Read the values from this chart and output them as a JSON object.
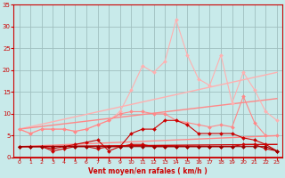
{
  "bg_color": "#c8eaea",
  "grid_color": "#a0c0c0",
  "xlabel": "Vent moyen/en rafales ( km/h )",
  "xlim": [
    -0.5,
    23.5
  ],
  "ylim": [
    0,
    35
  ],
  "yticks": [
    0,
    5,
    10,
    15,
    20,
    25,
    30,
    35
  ],
  "xticks": [
    0,
    1,
    2,
    3,
    4,
    5,
    6,
    7,
    8,
    9,
    10,
    11,
    12,
    13,
    14,
    15,
    16,
    17,
    18,
    19,
    20,
    21,
    22,
    23
  ],
  "label_color": "#cc0000",
  "series": [
    {
      "x": [
        0,
        23
      ],
      "y": [
        6.5,
        19.5
      ],
      "color": "#ffb0b0",
      "marker": null,
      "linewidth": 1.0
    },
    {
      "x": [
        0,
        23
      ],
      "y": [
        6.5,
        13.5
      ],
      "color": "#ff8888",
      "marker": null,
      "linewidth": 1.0
    },
    {
      "x": [
        0,
        23
      ],
      "y": [
        2.5,
        5.0
      ],
      "color": "#ff8888",
      "marker": null,
      "linewidth": 1.0
    },
    {
      "x": [
        0,
        23
      ],
      "y": [
        2.5,
        3.0
      ],
      "color": "#cc0000",
      "marker": null,
      "linewidth": 1.0
    },
    {
      "x": [
        0,
        1,
        2,
        3,
        4,
        5,
        6,
        7,
        8,
        9,
        10,
        11,
        12,
        13,
        14,
        15,
        16,
        17,
        18,
        19,
        20,
        21,
        22,
        23
      ],
      "y": [
        6.5,
        5.5,
        6.5,
        6.5,
        6.5,
        6.0,
        6.5,
        7.5,
        8.5,
        10.5,
        15.5,
        21.0,
        19.5,
        22.0,
        31.5,
        23.5,
        18.0,
        16.5,
        23.5,
        12.5,
        19.5,
        15.5,
        10.5,
        8.5
      ],
      "color": "#ffb0b0",
      "marker": "D",
      "markersize": 2,
      "linewidth": 0.8
    },
    {
      "x": [
        0,
        1,
        2,
        3,
        4,
        5,
        6,
        7,
        8,
        9,
        10,
        11,
        12,
        13,
        14,
        15,
        16,
        17,
        18,
        19,
        20,
        21,
        22,
        23
      ],
      "y": [
        6.5,
        5.5,
        6.5,
        6.5,
        6.5,
        6.0,
        6.5,
        7.5,
        8.5,
        10.0,
        10.5,
        10.5,
        10.0,
        10.0,
        8.5,
        8.0,
        7.5,
        7.0,
        7.5,
        7.0,
        14.0,
        8.0,
        5.0,
        5.0
      ],
      "color": "#ff8888",
      "marker": "D",
      "markersize": 2,
      "linewidth": 0.8
    },
    {
      "x": [
        0,
        1,
        2,
        3,
        4,
        5,
        6,
        7,
        8,
        9,
        10,
        11,
        12,
        13,
        14,
        15,
        16,
        17,
        18,
        19,
        20,
        21,
        22,
        23
      ],
      "y": [
        2.5,
        2.5,
        2.5,
        2.0,
        2.5,
        3.0,
        3.5,
        4.0,
        1.5,
        2.5,
        5.5,
        6.5,
        6.5,
        8.5,
        8.5,
        7.5,
        5.5,
        5.5,
        5.5,
        5.5,
        4.5,
        4.0,
        3.0,
        1.5
      ],
      "color": "#cc0000",
      "marker": "D",
      "markersize": 2,
      "linewidth": 0.8
    },
    {
      "x": [
        0,
        1,
        2,
        3,
        4,
        5,
        6,
        7,
        8,
        9,
        10,
        11,
        12,
        13,
        14,
        15,
        16,
        17,
        18,
        19,
        20,
        21,
        22,
        23
      ],
      "y": [
        2.5,
        2.5,
        2.5,
        1.5,
        2.0,
        2.5,
        2.5,
        2.0,
        2.5,
        2.5,
        3.0,
        3.0,
        2.5,
        2.5,
        2.5,
        2.5,
        2.5,
        2.5,
        2.5,
        2.5,
        3.0,
        3.0,
        2.0,
        1.5
      ],
      "color": "#cc0000",
      "marker": "D",
      "markersize": 2,
      "linewidth": 0.8
    },
    {
      "x": [
        0,
        1,
        2,
        3,
        4,
        5,
        6,
        7,
        8,
        9,
        10,
        11,
        12,
        13,
        14,
        15,
        16,
        17,
        18,
        19,
        20,
        21,
        22,
        23
      ],
      "y": [
        2.5,
        2.5,
        2.5,
        2.5,
        2.5,
        2.5,
        2.5,
        2.5,
        2.5,
        2.5,
        2.5,
        2.5,
        2.5,
        2.5,
        2.5,
        2.5,
        2.5,
        2.5,
        2.5,
        2.5,
        2.5,
        2.5,
        2.5,
        1.5
      ],
      "color": "#990000",
      "marker": "D",
      "markersize": 2,
      "linewidth": 0.8
    }
  ]
}
